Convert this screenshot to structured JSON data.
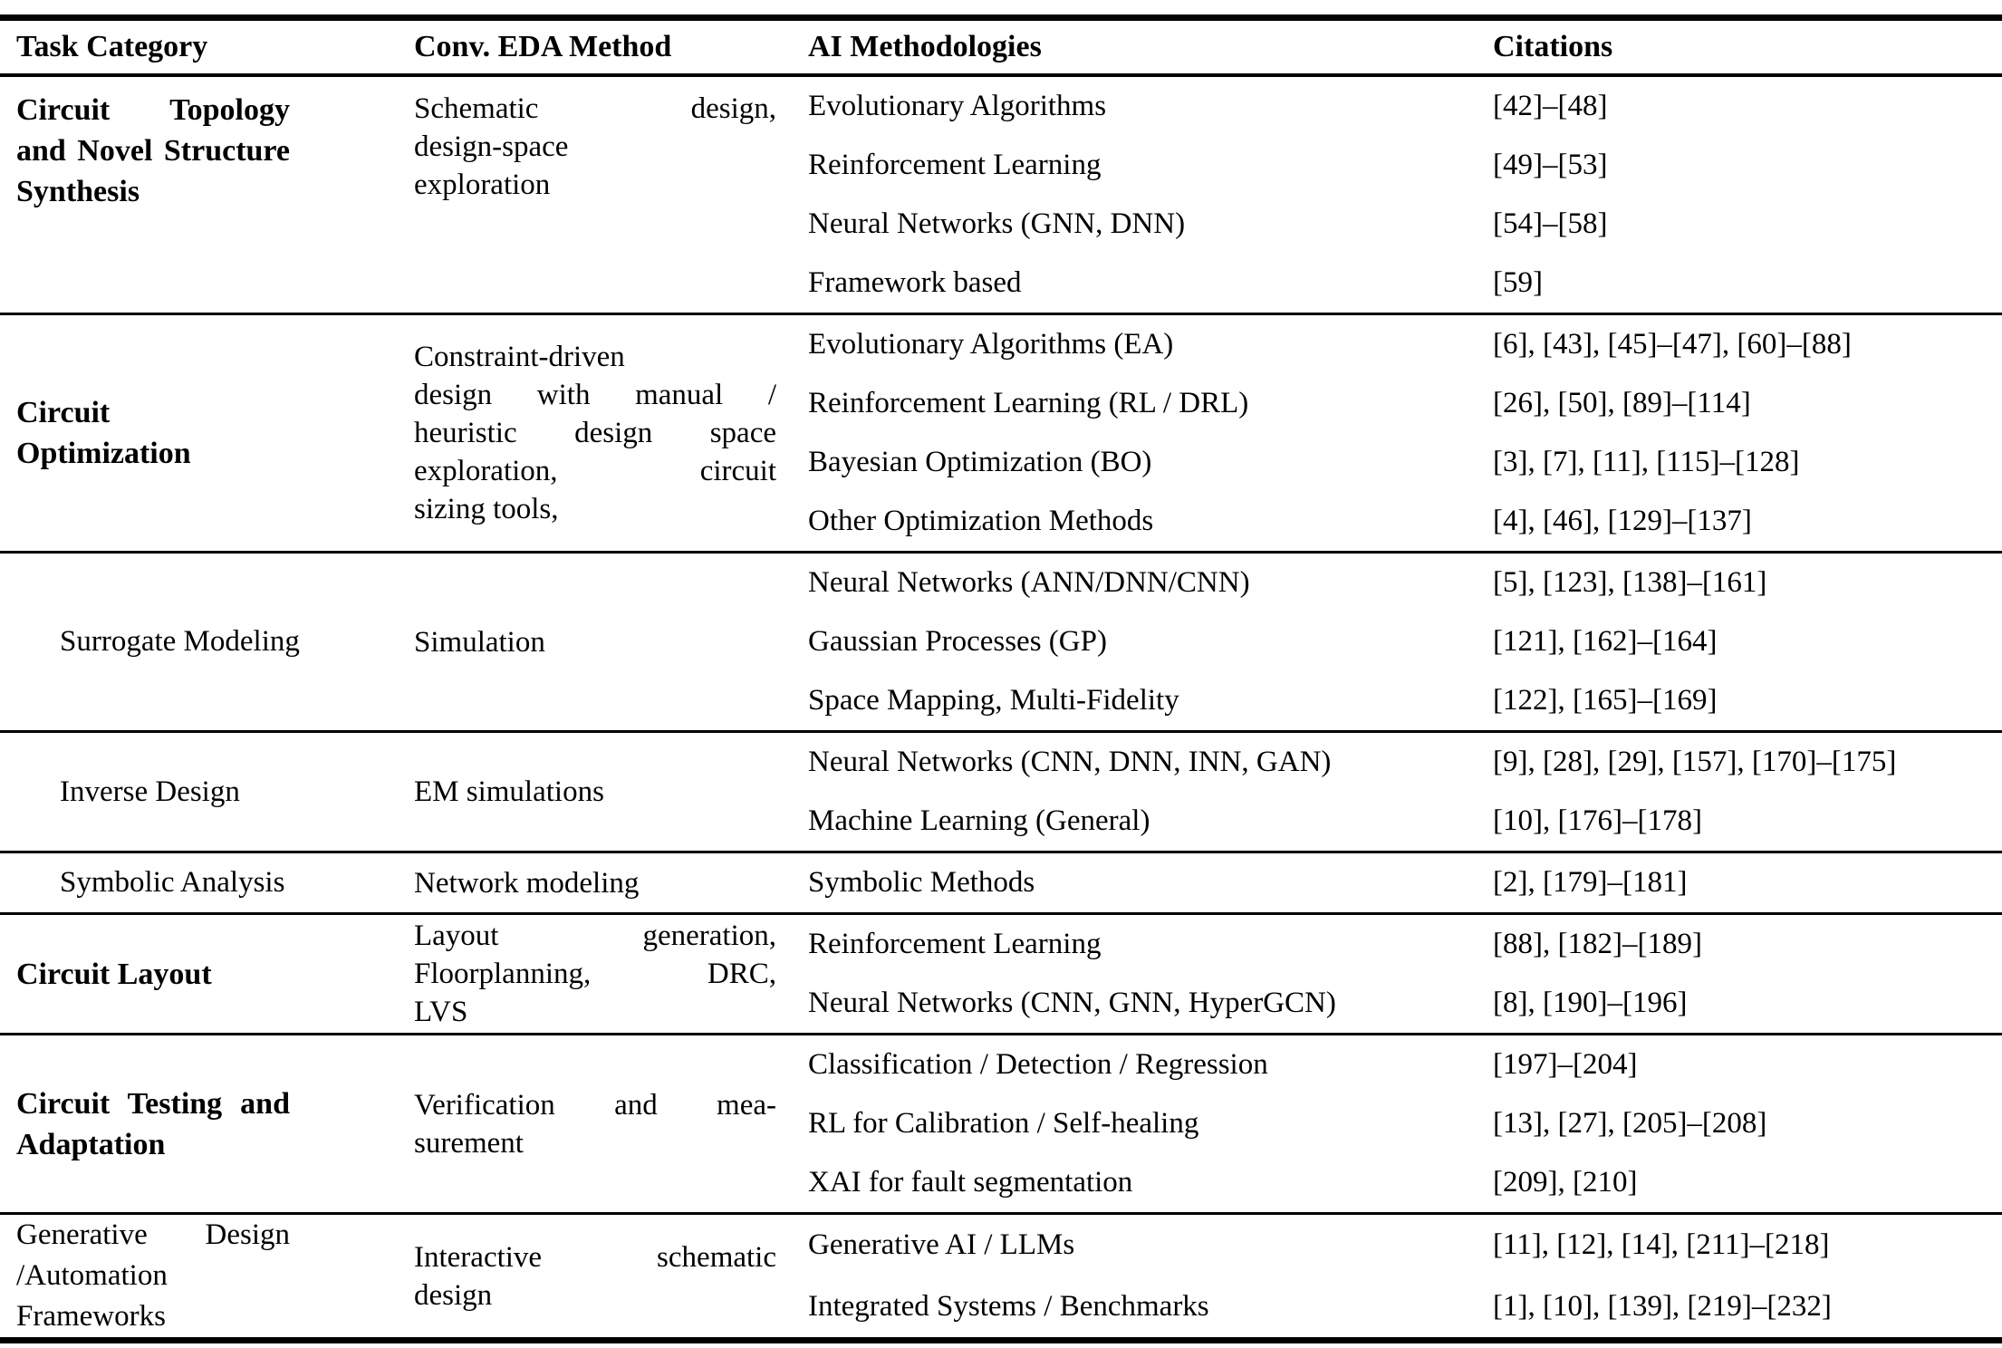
{
  "table": {
    "header": {
      "columns": [
        "Task Category",
        "Conv. EDA Method",
        "AI Methodologies",
        "Citations"
      ]
    },
    "sections": [
      {
        "category": "Circuit Topology\nand Novel Structure\nSynthesis",
        "category_style": {
          "bold": true,
          "indented": false
        },
        "eda_method": "Schematic design,\ndesign-space\nexploration",
        "methods": [
          {
            "ai": "Evolutionary Algorithms",
            "citations": "[42]–[48]"
          },
          {
            "ai": "Reinforcement Learning",
            "citations": "[49]–[53]"
          },
          {
            "ai": "Neural Networks (GNN, DNN)",
            "citations": "[54]–[58]"
          },
          {
            "ai": "Framework based",
            "citations": "[59]"
          }
        ]
      },
      {
        "category": "Circuit\nOptimization",
        "category_style": {
          "bold": true,
          "indented": false
        },
        "eda_method": "Constraint-driven\ndesign with manual /\nheuristic design space\nexploration, circuit\nsizing tools,",
        "methods": [
          {
            "ai": "Evolutionary Algorithms (EA)",
            "citations": "[6], [43], [45]–[47], [60]–[88]"
          },
          {
            "ai": "Reinforcement Learning (RL / DRL)",
            "citations": "[26], [50], [89]–[114]"
          },
          {
            "ai": "Bayesian Optimization (BO)",
            "citations": "[3], [7], [11], [115]–[128]"
          },
          {
            "ai": "Other Optimization Methods",
            "citations": "[4], [46], [129]–[137]"
          }
        ]
      },
      {
        "category": "Surrogate Modeling",
        "category_style": {
          "bold": false,
          "indented": true
        },
        "eda_method": "Simulation",
        "methods": [
          {
            "ai": "Neural Networks (ANN/DNN/CNN)",
            "citations": "[5], [123], [138]–[161]"
          },
          {
            "ai": "Gaussian Processes (GP)",
            "citations": "[121], [162]–[164]"
          },
          {
            "ai": "Space Mapping, Multi-Fidelity",
            "citations": "[122], [165]–[169]"
          }
        ]
      },
      {
        "category": "Inverse Design",
        "category_style": {
          "bold": false,
          "indented": true
        },
        "eda_method": "EM simulations",
        "methods": [
          {
            "ai": "Neural Networks (CNN, DNN, INN, GAN)",
            "citations": "[9], [28], [29], [157], [170]–[175]"
          },
          {
            "ai": "Machine Learning (General)",
            "citations": "[10], [176]–[178]"
          }
        ]
      },
      {
        "category": "Symbolic Analysis",
        "category_style": {
          "bold": false,
          "indented": true
        },
        "eda_method": "Network modeling",
        "methods": [
          {
            "ai": "Symbolic Methods",
            "citations": "[2], [179]–[181]"
          }
        ]
      },
      {
        "category": "Circuit Layout",
        "category_style": {
          "bold": true,
          "indented": false
        },
        "eda_method": "Layout generation,\nFloorplanning, DRC,\nLVS",
        "methods": [
          {
            "ai": "Reinforcement Learning",
            "citations": "[88], [182]–[189]"
          },
          {
            "ai": "Neural Networks (CNN, GNN, HyperGCN)",
            "citations": "[8], [190]–[196]"
          }
        ]
      },
      {
        "category": "Circuit Testing and\nAdaptation",
        "category_style": {
          "bold": true,
          "indented": false
        },
        "eda_method": "Verification and mea-\nsurement",
        "methods": [
          {
            "ai": "Classification / Detection / Regression",
            "citations": "[197]–[204]"
          },
          {
            "ai": "RL for Calibration / Self-healing",
            "citations": "[13], [27], [205]–[208]"
          },
          {
            "ai": "XAI for fault segmentation",
            "citations": "[209], [210]"
          }
        ]
      },
      {
        "category": "Generative Design\n/Automation\nFrameworks",
        "category_style": {
          "bold": false,
          "indented": false
        },
        "eda_method": "Interactive schematic\ndesign",
        "methods": [
          {
            "ai": "Generative AI / LLMs",
            "citations": "[11], [12], [14], [211]–[218]"
          },
          {
            "ai": "Integrated Systems / Benchmarks",
            "citations": "[1], [10], [139], [219]–[232]"
          }
        ]
      }
    ]
  }
}
